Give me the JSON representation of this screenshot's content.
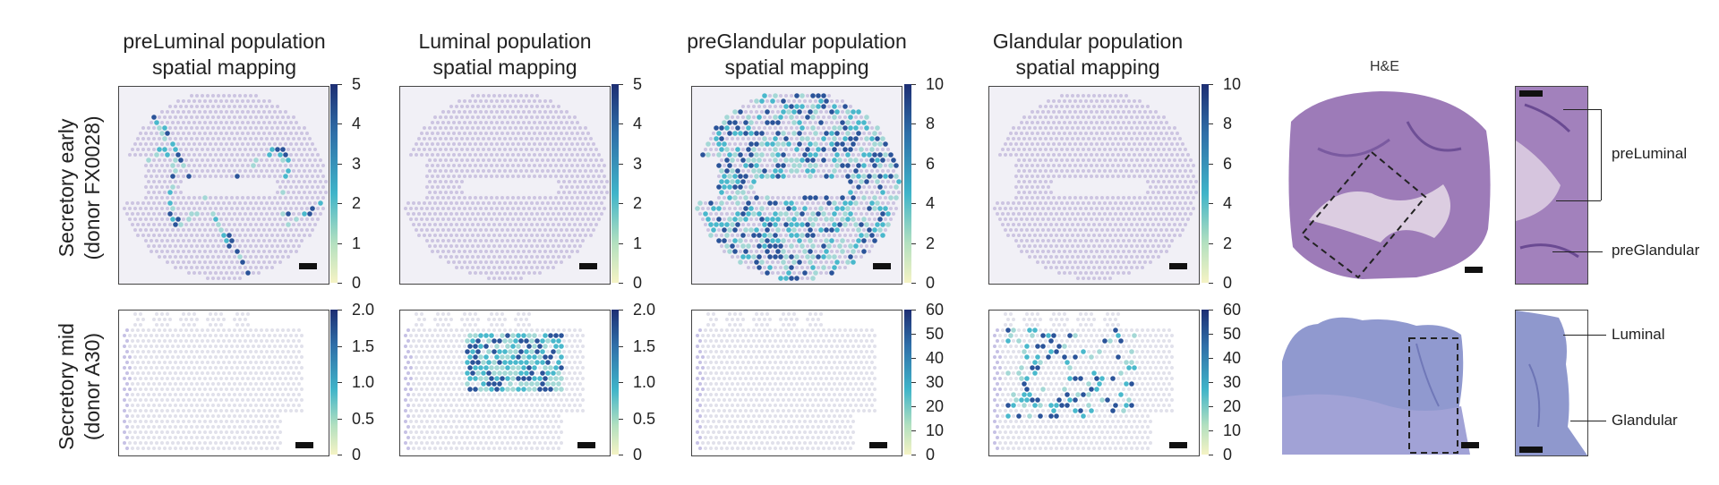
{
  "columns": [
    {
      "title": "preLuminal population\nspatial mapping"
    },
    {
      "title": "Luminal population\nspatial mapping"
    },
    {
      "title": "preGlandular population\nspatial mapping"
    },
    {
      "title": "Glandular population\nspatial mapping"
    }
  ],
  "he_title": "H&E",
  "rows": [
    {
      "label": "Secretory early\n(donor FX0028)"
    },
    {
      "label": "Secretory mid\n(donor A30)"
    }
  ],
  "colorbars": {
    "row1": [
      {
        "ticks": [
          "5",
          "4",
          "3",
          "2",
          "1",
          "0"
        ]
      },
      {
        "ticks": [
          "5",
          "4",
          "3",
          "2",
          "1",
          "0"
        ]
      },
      {
        "ticks": [
          "10",
          "8",
          "6",
          "4",
          "2",
          "0"
        ]
      },
      {
        "ticks": [
          "10",
          "8",
          "6",
          "4",
          "2",
          "0"
        ]
      }
    ],
    "row2": [
      {
        "ticks": [
          "2.0",
          "1.5",
          "1.0",
          "0.5",
          "0"
        ]
      },
      {
        "ticks": [
          "2.0",
          "1.5",
          "1.0",
          "0.5",
          "0"
        ]
      },
      {
        "ticks": [
          "60",
          "50",
          "40",
          "30",
          "20",
          "10",
          "0"
        ]
      },
      {
        "ticks": [
          "60",
          "50",
          "40",
          "30",
          "20",
          "10",
          "0"
        ]
      }
    ]
  },
  "annotations": {
    "row1": [
      "preLuminal",
      "preGlandular"
    ],
    "row2": [
      "Luminal",
      "Glandular"
    ]
  },
  "colors": {
    "low": "#f5f3c4",
    "mid": "#3fb4c9",
    "high": "#1d2e73",
    "tissue": "#b9aed6",
    "he_early": "#9b78b4",
    "he_mid": "#8f96cc"
  }
}
